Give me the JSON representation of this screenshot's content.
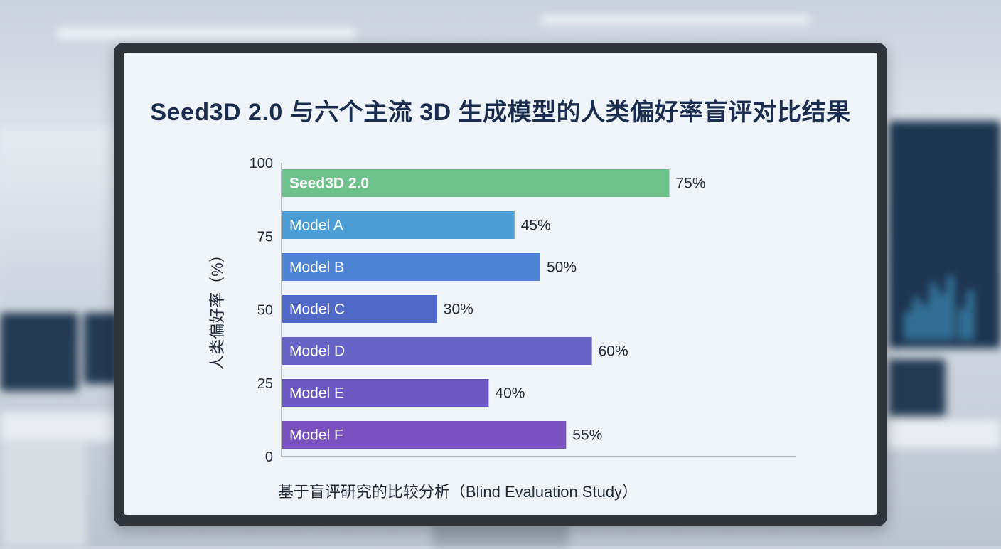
{
  "chart_data": {
    "type": "bar",
    "orientation": "horizontal",
    "title": "Seed3D 2.0 与六个主流 3D 生成模型的人类偏好率盲评对比结果",
    "ylabel": "人类偏好率（%）",
    "xlabel": "基于盲评研究的比较分析（Blind Evaluation Study）",
    "categories": [
      "Seed3D 2.0",
      "Model A",
      "Model B",
      "Model C",
      "Model D",
      "Model E",
      "Model F"
    ],
    "values": [
      75,
      45,
      50,
      30,
      60,
      40,
      55
    ],
    "value_labels": [
      "75%",
      "45%",
      "50%",
      "30%",
      "60%",
      "40%",
      "55%"
    ],
    "scale_max": 100,
    "axis_ticks": [
      "100",
      "75",
      "50",
      "25",
      "0"
    ],
    "colors": [
      "#6cc28a",
      "#4b9dd6",
      "#4d84d3",
      "#5068c8",
      "#6563c6",
      "#6b58c2",
      "#7a52c0"
    ],
    "grid": false,
    "legend": "none"
  }
}
